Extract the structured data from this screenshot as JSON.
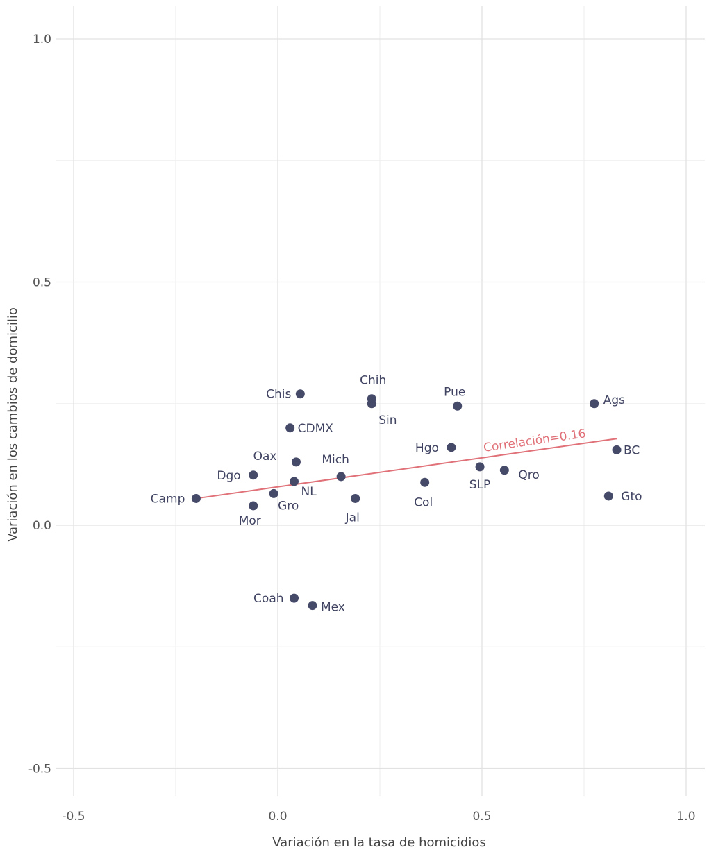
{
  "chart_data": {
    "type": "scatter",
    "title": "",
    "xlabel": "Variación en la tasa de homicidios",
    "ylabel": "Variación en los cambios de domicilio",
    "xlim": [
      -0.55,
      1.05
    ],
    "ylim": [
      -0.54,
      1.04
    ],
    "x_ticks": [
      -0.5,
      0.0,
      0.5,
      1.0
    ],
    "x_tick_labels": [
      "-0.5",
      "0.0",
      "0.5",
      "1.0"
    ],
    "y_ticks": [
      -0.5,
      0.0,
      0.5,
      1.0
    ],
    "y_tick_labels": [
      "-0.5",
      "0.0",
      "0.5",
      "1.0"
    ],
    "grid": true,
    "point_color": "#464a69",
    "trend_color": "#e07178",
    "trend_line": {
      "x": [
        -0.2,
        0.83
      ],
      "y": [
        0.055,
        0.178
      ]
    },
    "correlation_label": "Correlación=0.16",
    "points": [
      {
        "label": "Chis",
        "x": 0.055,
        "y": 0.27
      },
      {
        "label": "Chih",
        "x": 0.23,
        "y": 0.26
      },
      {
        "label": "Sin",
        "x": 0.23,
        "y": 0.25
      },
      {
        "label": "Pue",
        "x": 0.44,
        "y": 0.245
      },
      {
        "label": "Ags",
        "x": 0.775,
        "y": 0.25
      },
      {
        "label": "CDMX",
        "x": 0.03,
        "y": 0.2
      },
      {
        "label": "Hgo",
        "x": 0.425,
        "y": 0.16
      },
      {
        "label": "BC",
        "x": 0.83,
        "y": 0.155
      },
      {
        "label": "Oax",
        "x": 0.045,
        "y": 0.13
      },
      {
        "label": "Dgo",
        "x": -0.06,
        "y": 0.103
      },
      {
        "label": "Mich",
        "x": 0.155,
        "y": 0.1
      },
      {
        "label": "SLP",
        "x": 0.495,
        "y": 0.12
      },
      {
        "label": "Qro",
        "x": 0.555,
        "y": 0.113
      },
      {
        "label": "Col",
        "x": 0.36,
        "y": 0.088
      },
      {
        "label": "NL",
        "x": 0.04,
        "y": 0.09
      },
      {
        "label": "Camp",
        "x": -0.2,
        "y": 0.055
      },
      {
        "label": "Gro",
        "x": -0.01,
        "y": 0.065
      },
      {
        "label": "Jal",
        "x": 0.19,
        "y": 0.055
      },
      {
        "label": "Gto",
        "x": 0.81,
        "y": 0.06
      },
      {
        "label": "Mor",
        "x": -0.06,
        "y": 0.04
      },
      {
        "label": "Coah",
        "x": 0.04,
        "y": -0.15
      },
      {
        "label": "Mex",
        "x": 0.085,
        "y": -0.165
      }
    ]
  }
}
